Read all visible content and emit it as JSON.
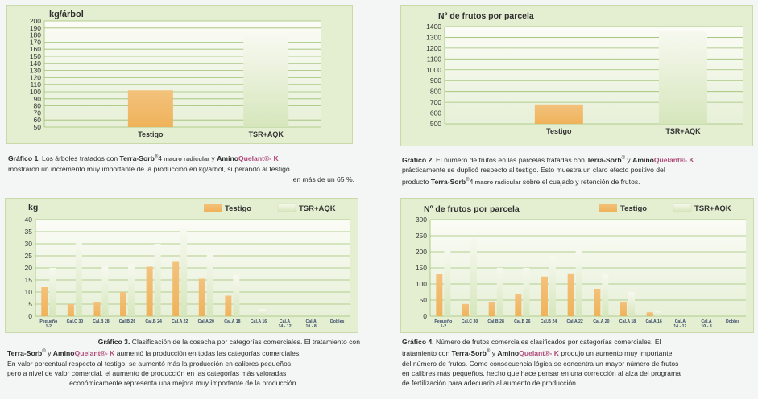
{
  "colors": {
    "testigo": "#efb25a",
    "tsr": "#d6e6bc",
    "grid": "#9fbf73",
    "title": "#2f2f2f"
  },
  "captions": {
    "c1": {
      "label": "Gráfico 1.",
      "line1_a": " Los árboles tratados con ",
      "brand1": "Terra-Sorb",
      "sup1": "®",
      "num1": "4",
      "macro": " macro radicular",
      "y": " y ",
      "amino": "Amino",
      "quelant": "Quelant",
      "k": "®- K",
      "line2": "mostraron un incremento muy importante de la producción en kg/árbol, superando al testigo",
      "line3": "en más de un 65 %."
    },
    "c2": {
      "label": "Gráfico 2.",
      "line1_a": " El número de frutos en las parcelas tratadas con ",
      "brand1": "Terra-Sorb",
      "sup1": "®",
      "y": " y ",
      "amino": "Amino",
      "quelant": "Quelant",
      "k": "®- K",
      "line2": "prácticamente se duplicó respecto al testigo. Esto muestra un claro efecto positivo del",
      "line3_a": "producto ",
      "brand2": "Terra-Sorb",
      "sup2": "®",
      "num2": "4",
      "macro": " macro radicular",
      "line3_b": " sobre el cuajado y retención de frutos."
    },
    "c3": {
      "label": "Gráfico 3.",
      "line1_a": " Clasificación de la cosecha por categorías comerciales.  El tratamiento con",
      "brand1": "Terra-Sorb",
      "sup1": "®",
      "y": " y ",
      "amino": "Amino",
      "quelant": "Quelant",
      "k": "®- K",
      "line2_b": " aumentó la producción en todas las categorías comerciales.",
      "line3": "En valor porcentual respecto al testigo, se aumentó más la producción en calibres pequeños,",
      "line4": "pero a nivel de valor comercial, el aumento de producción en las categorías más valoradas",
      "line5": "económicamente representa una mejora muy importante de la producción."
    },
    "c4": {
      "label": "Gráfico 4.",
      "line1_a": " Número de frutos comerciales clasificados por categorías comerciales. El",
      "line2_a": "tratamiento con ",
      "brand1": "Terra-Sorb",
      "sup1": "®",
      "y": " y ",
      "amino": "Amino",
      "quelant": "Quelant",
      "k": "®- K",
      "line2_b": " produjo un aumento muy importante",
      "line3": "del número de frutos. Como consecuencia lógica se concentra un mayor número de frutos",
      "line4": "en calibres más pequeños, hecho que hace pensar en una corrección al alza del programa",
      "line5": "de fertilización para adecuario al aumento de producción."
    }
  },
  "chart_data": [
    {
      "type": "bar",
      "title": "kg/árbol",
      "categories": [
        "Testigo",
        "TSR+AQK"
      ],
      "values": [
        102,
        179
      ],
      "ylim": [
        50,
        200
      ],
      "yticks": [
        50,
        60,
        70,
        80,
        90,
        100,
        110,
        120,
        130,
        140,
        150,
        160,
        170,
        180,
        190,
        200
      ],
      "grid": true
    },
    {
      "type": "bar",
      "title": "Nº de frutos por parcela",
      "categories": [
        "Testigo",
        "TSR+AQK"
      ],
      "values": [
        680,
        1360
      ],
      "ylim": [
        500,
        1400
      ],
      "yticks": [
        500,
        600,
        700,
        800,
        900,
        1000,
        1100,
        1200,
        1300,
        1400
      ],
      "grid": true
    },
    {
      "type": "bar",
      "title": "kg",
      "categories": [
        "Pequeño 1-2",
        "Cal.C 30",
        "Cal.B 28",
        "Cal.B 26",
        "Cal.B 24",
        "Cal.A 22",
        "Cal.A 20",
        "Cal.A 18",
        "Cal.A 16",
        "Cal.A 14 - 12",
        "Cal.A 10 - 8",
        "Dobles"
      ],
      "category_lines": [
        [
          "Pequeño",
          "1-2"
        ],
        [
          "Cal.C 30"
        ],
        [
          "Cal.B 28"
        ],
        [
          "Cal.B 26"
        ],
        [
          "Cal.B 24"
        ],
        [
          "Cal.A 22"
        ],
        [
          "Cal.A 20"
        ],
        [
          "Cal.A 18"
        ],
        [
          "Cal.A 16"
        ],
        [
          "Cal.A",
          "14 - 12"
        ],
        [
          "Cal.A",
          "10 - 8"
        ],
        [
          "Dobles"
        ]
      ],
      "series": [
        {
          "name": "Testigo",
          "values": [
            12,
            5,
            6,
            10,
            20.5,
            22.5,
            15.5,
            8.5,
            0,
            0,
            0,
            0
          ]
        },
        {
          "name": "TSR+AQK",
          "values": [
            20,
            31,
            20.5,
            21.5,
            30,
            36,
            26,
            17,
            3,
            0,
            0,
            0
          ]
        }
      ],
      "ylim": [
        0,
        40
      ],
      "yticks": [
        0,
        5,
        10,
        15,
        20,
        25,
        30,
        35,
        40
      ],
      "legend": "top-right",
      "grid": true
    },
    {
      "type": "bar",
      "title": "Nº de frutos por parcela",
      "categories": [
        "Pequeño 1-2",
        "Cal.C 30",
        "Cal.B 28",
        "Cal.B 26",
        "Cal.B 24",
        "Cal.A 22",
        "Cal.A 20",
        "Cal.A 18",
        "Cal.A 16",
        "Cal.A 14 - 12",
        "Cal.A 10 - 8",
        "Dobles"
      ],
      "category_lines": [
        [
          "Pequeño",
          "1-2"
        ],
        [
          "Cal.C 30"
        ],
        [
          "Cal.B 28"
        ],
        [
          "Cal.B 26"
        ],
        [
          "Cal.B 24"
        ],
        [
          "Cal.A 22"
        ],
        [
          "Cal.A 20"
        ],
        [
          "Cal.A 18"
        ],
        [
          "Cal.A 16"
        ],
        [
          "Cal.A",
          "14 - 12"
        ],
        [
          "Cal.A",
          "10 - 8"
        ],
        [
          "Dobles"
        ]
      ],
      "series": [
        {
          "name": "Testigo",
          "values": [
            130,
            38,
            45,
            68,
            123,
            133,
            85,
            45,
            12,
            0,
            0,
            0
          ]
        },
        {
          "name": "TSR+AQK",
          "values": [
            210,
            245,
            150,
            150,
            187,
            205,
            132,
            75,
            17,
            0,
            0,
            0
          ]
        }
      ],
      "ylim": [
        0,
        300
      ],
      "yticks": [
        0,
        50,
        100,
        150,
        200,
        250,
        300
      ],
      "legend": "top-right",
      "grid": true
    }
  ]
}
